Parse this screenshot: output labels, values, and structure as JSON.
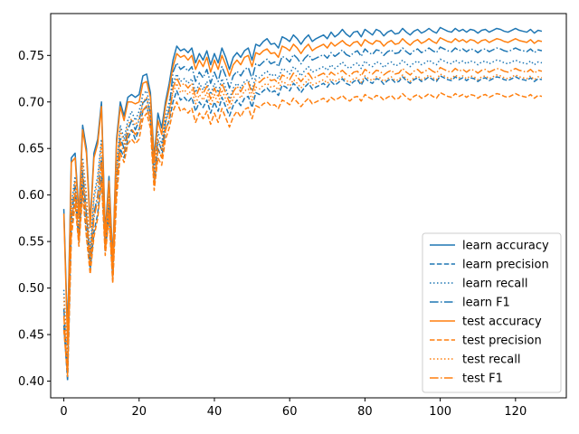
{
  "chart_data": {
    "type": "line",
    "title": "",
    "xlabel": "",
    "ylabel": "",
    "xlim": [
      -3.5,
      133.5
    ],
    "ylim": [
      0.382,
      0.795
    ],
    "xticks": [
      0,
      20,
      40,
      60,
      80,
      100,
      120
    ],
    "yticks": [
      0.4,
      0.45,
      0.5,
      0.55,
      0.6,
      0.65,
      0.7,
      0.75
    ],
    "ytick_labels": [
      "0.40",
      "0.45",
      "0.50",
      "0.55",
      "0.60",
      "0.65",
      "0.70",
      "0.75"
    ],
    "legend_position": "lower-right",
    "colors": {
      "learn": "#1f77b4",
      "test": "#ff7f0e"
    },
    "x_start": 0,
    "x_end": 127,
    "series": [
      {
        "name": "learn accuracy",
        "group": "learn",
        "style": "solid",
        "values": [
          0.585,
          0.45,
          0.64,
          0.645,
          0.58,
          0.675,
          0.65,
          0.57,
          0.645,
          0.66,
          0.7,
          0.56,
          0.62,
          0.53,
          0.66,
          0.7,
          0.685,
          0.705,
          0.708,
          0.705,
          0.708,
          0.728,
          0.73,
          0.71,
          0.64,
          0.688,
          0.672,
          0.7,
          0.72,
          0.745,
          0.76,
          0.755,
          0.757,
          0.753,
          0.758,
          0.742,
          0.752,
          0.745,
          0.755,
          0.74,
          0.752,
          0.742,
          0.758,
          0.748,
          0.735,
          0.748,
          0.753,
          0.748,
          0.755,
          0.758,
          0.745,
          0.762,
          0.76,
          0.765,
          0.768,
          0.762,
          0.763,
          0.758,
          0.77,
          0.768,
          0.765,
          0.772,
          0.768,
          0.762,
          0.768,
          0.772,
          0.765,
          0.768,
          0.77,
          0.772,
          0.768,
          0.775,
          0.77,
          0.773,
          0.778,
          0.773,
          0.77,
          0.775,
          0.776,
          0.77,
          0.778,
          0.775,
          0.772,
          0.778,
          0.776,
          0.771,
          0.775,
          0.777,
          0.773,
          0.774,
          0.779,
          0.775,
          0.772,
          0.776,
          0.778,
          0.774,
          0.776,
          0.779,
          0.776,
          0.774,
          0.78,
          0.778,
          0.776,
          0.775,
          0.779,
          0.776,
          0.778,
          0.775,
          0.778,
          0.777,
          0.774,
          0.777,
          0.778,
          0.775,
          0.777,
          0.779,
          0.778,
          0.776,
          0.775,
          0.777,
          0.779,
          0.777,
          0.776,
          0.775,
          0.778,
          0.774,
          0.777,
          0.776
        ]
      },
      {
        "name": "learn precision",
        "group": "learn",
        "style": "dashed",
        "values": [
          0.46,
          0.4,
          0.56,
          0.6,
          0.55,
          0.61,
          0.56,
          0.52,
          0.56,
          0.58,
          0.62,
          0.54,
          0.58,
          0.508,
          0.6,
          0.65,
          0.64,
          0.66,
          0.67,
          0.66,
          0.67,
          0.69,
          0.695,
          0.68,
          0.61,
          0.65,
          0.64,
          0.67,
          0.68,
          0.7,
          0.712,
          0.702,
          0.705,
          0.7,
          0.705,
          0.69,
          0.7,
          0.694,
          0.702,
          0.688,
          0.7,
          0.69,
          0.705,
          0.695,
          0.685,
          0.696,
          0.702,
          0.696,
          0.704,
          0.706,
          0.694,
          0.71,
          0.708,
          0.712,
          0.715,
          0.71,
          0.712,
          0.707,
          0.718,
          0.716,
          0.712,
          0.72,
          0.716,
          0.71,
          0.716,
          0.72,
          0.714,
          0.716,
          0.718,
          0.72,
          0.716,
          0.722,
          0.718,
          0.721,
          0.725,
          0.72,
          0.718,
          0.722,
          0.724,
          0.718,
          0.726,
          0.722,
          0.72,
          0.725,
          0.724,
          0.719,
          0.723,
          0.725,
          0.721,
          0.722,
          0.727,
          0.723,
          0.72,
          0.724,
          0.726,
          0.722,
          0.724,
          0.727,
          0.724,
          0.722,
          0.728,
          0.726,
          0.724,
          0.723,
          0.727,
          0.724,
          0.726,
          0.723,
          0.726,
          0.725,
          0.722,
          0.725,
          0.726,
          0.723,
          0.725,
          0.727,
          0.726,
          0.724,
          0.723,
          0.725,
          0.727,
          0.725,
          0.724,
          0.723,
          0.726,
          0.722,
          0.725,
          0.724
        ]
      },
      {
        "name": "learn recall",
        "group": "learn",
        "style": "dotted",
        "values": [
          0.498,
          0.42,
          0.59,
          0.62,
          0.56,
          0.64,
          0.6,
          0.54,
          0.6,
          0.62,
          0.66,
          0.55,
          0.6,
          0.515,
          0.63,
          0.675,
          0.66,
          0.68,
          0.69,
          0.68,
          0.69,
          0.708,
          0.712,
          0.695,
          0.625,
          0.668,
          0.655,
          0.685,
          0.7,
          0.72,
          0.73,
          0.722,
          0.725,
          0.72,
          0.725,
          0.71,
          0.72,
          0.713,
          0.722,
          0.708,
          0.72,
          0.71,
          0.725,
          0.715,
          0.703,
          0.715,
          0.72,
          0.715,
          0.722,
          0.724,
          0.712,
          0.728,
          0.726,
          0.73,
          0.733,
          0.728,
          0.73,
          0.725,
          0.736,
          0.734,
          0.73,
          0.738,
          0.734,
          0.728,
          0.734,
          0.738,
          0.732,
          0.734,
          0.736,
          0.738,
          0.734,
          0.74,
          0.736,
          0.739,
          0.743,
          0.738,
          0.736,
          0.74,
          0.742,
          0.736,
          0.744,
          0.74,
          0.738,
          0.743,
          0.742,
          0.737,
          0.741,
          0.743,
          0.739,
          0.74,
          0.745,
          0.741,
          0.738,
          0.742,
          0.744,
          0.74,
          0.742,
          0.745,
          0.742,
          0.74,
          0.746,
          0.744,
          0.742,
          0.741,
          0.745,
          0.742,
          0.744,
          0.741,
          0.744,
          0.743,
          0.74,
          0.743,
          0.744,
          0.741,
          0.743,
          0.745,
          0.744,
          0.742,
          0.741,
          0.743,
          0.745,
          0.743,
          0.742,
          0.741,
          0.744,
          0.74,
          0.743,
          0.742
        ]
      },
      {
        "name": "learn F1",
        "group": "learn",
        "style": "dashdot",
        "values": [
          0.478,
          0.41,
          0.575,
          0.61,
          0.555,
          0.625,
          0.58,
          0.53,
          0.58,
          0.6,
          0.64,
          0.545,
          0.59,
          0.512,
          0.615,
          0.662,
          0.65,
          0.67,
          0.68,
          0.67,
          0.68,
          0.699,
          0.703,
          0.688,
          0.618,
          0.659,
          0.648,
          0.678,
          0.692,
          0.732,
          0.742,
          0.735,
          0.738,
          0.733,
          0.738,
          0.722,
          0.732,
          0.726,
          0.735,
          0.72,
          0.732,
          0.722,
          0.738,
          0.728,
          0.715,
          0.728,
          0.733,
          0.728,
          0.735,
          0.737,
          0.725,
          0.741,
          0.739,
          0.743,
          0.746,
          0.741,
          0.743,
          0.738,
          0.749,
          0.747,
          0.743,
          0.751,
          0.747,
          0.741,
          0.747,
          0.751,
          0.745,
          0.747,
          0.749,
          0.751,
          0.747,
          0.753,
          0.749,
          0.752,
          0.756,
          0.751,
          0.749,
          0.753,
          0.755,
          0.749,
          0.757,
          0.753,
          0.751,
          0.756,
          0.755,
          0.75,
          0.754,
          0.756,
          0.752,
          0.753,
          0.758,
          0.754,
          0.751,
          0.755,
          0.757,
          0.753,
          0.755,
          0.758,
          0.755,
          0.753,
          0.759,
          0.757,
          0.755,
          0.754,
          0.758,
          0.755,
          0.757,
          0.754,
          0.757,
          0.756,
          0.753,
          0.756,
          0.757,
          0.754,
          0.756,
          0.758,
          0.757,
          0.755,
          0.754,
          0.756,
          0.758,
          0.756,
          0.755,
          0.754,
          0.757,
          0.753,
          0.756,
          0.755
        ]
      },
      {
        "name": "test accuracy",
        "group": "test",
        "style": "solid",
        "values": [
          0.58,
          0.44,
          0.635,
          0.64,
          0.575,
          0.67,
          0.645,
          0.565,
          0.64,
          0.655,
          0.695,
          0.555,
          0.615,
          0.525,
          0.655,
          0.695,
          0.68,
          0.7,
          0.7,
          0.698,
          0.7,
          0.72,
          0.722,
          0.705,
          0.635,
          0.68,
          0.665,
          0.695,
          0.715,
          0.738,
          0.752,
          0.748,
          0.75,
          0.745,
          0.75,
          0.735,
          0.745,
          0.738,
          0.748,
          0.732,
          0.745,
          0.735,
          0.75,
          0.74,
          0.728,
          0.74,
          0.745,
          0.74,
          0.748,
          0.75,
          0.738,
          0.753,
          0.751,
          0.755,
          0.757,
          0.752,
          0.753,
          0.748,
          0.76,
          0.758,
          0.755,
          0.762,
          0.758,
          0.752,
          0.758,
          0.762,
          0.755,
          0.758,
          0.76,
          0.762,
          0.758,
          0.764,
          0.76,
          0.763,
          0.766,
          0.762,
          0.76,
          0.764,
          0.765,
          0.76,
          0.767,
          0.764,
          0.762,
          0.766,
          0.765,
          0.76,
          0.764,
          0.766,
          0.762,
          0.763,
          0.768,
          0.764,
          0.761,
          0.765,
          0.767,
          0.763,
          0.765,
          0.768,
          0.765,
          0.763,
          0.769,
          0.767,
          0.765,
          0.764,
          0.768,
          0.765,
          0.767,
          0.764,
          0.767,
          0.766,
          0.763,
          0.766,
          0.767,
          0.764,
          0.766,
          0.768,
          0.767,
          0.765,
          0.764,
          0.766,
          0.768,
          0.766,
          0.765,
          0.764,
          0.767,
          0.763,
          0.766,
          0.765
        ]
      },
      {
        "name": "test precision",
        "group": "test",
        "style": "dashed",
        "values": [
          0.455,
          0.405,
          0.555,
          0.59,
          0.545,
          0.6,
          0.555,
          0.515,
          0.555,
          0.575,
          0.615,
          0.535,
          0.575,
          0.505,
          0.595,
          0.645,
          0.635,
          0.655,
          0.66,
          0.655,
          0.66,
          0.682,
          0.688,
          0.672,
          0.605,
          0.64,
          0.632,
          0.66,
          0.672,
          0.69,
          0.7,
          0.69,
          0.693,
          0.688,
          0.693,
          0.678,
          0.688,
          0.682,
          0.69,
          0.676,
          0.688,
          0.678,
          0.693,
          0.683,
          0.673,
          0.684,
          0.69,
          0.684,
          0.692,
          0.694,
          0.682,
          0.696,
          0.694,
          0.698,
          0.7,
          0.696,
          0.697,
          0.693,
          0.702,
          0.7,
          0.697,
          0.704,
          0.7,
          0.695,
          0.7,
          0.704,
          0.698,
          0.7,
          0.702,
          0.704,
          0.7,
          0.705,
          0.702,
          0.704,
          0.707,
          0.703,
          0.701,
          0.705,
          0.706,
          0.701,
          0.708,
          0.705,
          0.703,
          0.707,
          0.706,
          0.702,
          0.705,
          0.707,
          0.703,
          0.704,
          0.709,
          0.705,
          0.702,
          0.706,
          0.708,
          0.704,
          0.706,
          0.709,
          0.706,
          0.704,
          0.71,
          0.708,
          0.706,
          0.705,
          0.709,
          0.706,
          0.708,
          0.705,
          0.708,
          0.707,
          0.704,
          0.707,
          0.708,
          0.705,
          0.707,
          0.709,
          0.708,
          0.706,
          0.705,
          0.707,
          0.709,
          0.707,
          0.706,
          0.705,
          0.708,
          0.704,
          0.707,
          0.706
        ]
      },
      {
        "name": "test recall",
        "group": "test",
        "style": "dotted",
        "values": [
          0.49,
          0.415,
          0.585,
          0.615,
          0.555,
          0.635,
          0.595,
          0.535,
          0.595,
          0.615,
          0.655,
          0.545,
          0.595,
          0.512,
          0.625,
          0.67,
          0.655,
          0.675,
          0.682,
          0.675,
          0.682,
          0.7,
          0.705,
          0.688,
          0.62,
          0.66,
          0.648,
          0.678,
          0.692,
          0.71,
          0.72,
          0.71,
          0.713,
          0.708,
          0.713,
          0.698,
          0.708,
          0.702,
          0.71,
          0.696,
          0.708,
          0.698,
          0.713,
          0.703,
          0.692,
          0.704,
          0.71,
          0.704,
          0.712,
          0.714,
          0.702,
          0.716,
          0.714,
          0.718,
          0.72,
          0.716,
          0.717,
          0.713,
          0.722,
          0.72,
          0.717,
          0.724,
          0.72,
          0.715,
          0.72,
          0.724,
          0.718,
          0.72,
          0.722,
          0.724,
          0.72,
          0.725,
          0.722,
          0.724,
          0.727,
          0.723,
          0.721,
          0.725,
          0.726,
          0.721,
          0.728,
          0.725,
          0.723,
          0.727,
          0.726,
          0.722,
          0.725,
          0.727,
          0.723,
          0.724,
          0.729,
          0.725,
          0.722,
          0.726,
          0.728,
          0.724,
          0.726,
          0.729,
          0.726,
          0.724,
          0.73,
          0.728,
          0.726,
          0.725,
          0.729,
          0.726,
          0.728,
          0.725,
          0.728,
          0.727,
          0.724,
          0.727,
          0.728,
          0.725,
          0.727,
          0.729,
          0.728,
          0.726,
          0.725,
          0.727,
          0.729,
          0.727,
          0.726,
          0.725,
          0.728,
          0.724,
          0.727,
          0.726
        ]
      },
      {
        "name": "test F1",
        "group": "test",
        "style": "dashdot",
        "values": [
          0.47,
          0.408,
          0.57,
          0.602,
          0.55,
          0.618,
          0.575,
          0.525,
          0.575,
          0.595,
          0.635,
          0.54,
          0.585,
          0.508,
          0.61,
          0.657,
          0.645,
          0.665,
          0.671,
          0.665,
          0.671,
          0.691,
          0.696,
          0.68,
          0.612,
          0.65,
          0.64,
          0.669,
          0.682,
          0.715,
          0.726,
          0.717,
          0.72,
          0.715,
          0.72,
          0.705,
          0.715,
          0.709,
          0.717,
          0.703,
          0.715,
          0.705,
          0.72,
          0.71,
          0.699,
          0.711,
          0.717,
          0.711,
          0.719,
          0.721,
          0.709,
          0.723,
          0.721,
          0.725,
          0.727,
          0.723,
          0.724,
          0.72,
          0.729,
          0.727,
          0.724,
          0.731,
          0.727,
          0.722,
          0.727,
          0.731,
          0.725,
          0.727,
          0.729,
          0.731,
          0.727,
          0.732,
          0.729,
          0.731,
          0.734,
          0.73,
          0.728,
          0.732,
          0.733,
          0.728,
          0.735,
          0.732,
          0.73,
          0.734,
          0.733,
          0.729,
          0.732,
          0.734,
          0.73,
          0.731,
          0.736,
          0.732,
          0.729,
          0.733,
          0.735,
          0.731,
          0.733,
          0.736,
          0.733,
          0.731,
          0.737,
          0.735,
          0.733,
          0.732,
          0.736,
          0.733,
          0.735,
          0.732,
          0.735,
          0.734,
          0.731,
          0.734,
          0.735,
          0.732,
          0.734,
          0.736,
          0.735,
          0.733,
          0.732,
          0.734,
          0.736,
          0.734,
          0.733,
          0.732,
          0.735,
          0.731,
          0.734,
          0.733
        ]
      }
    ]
  }
}
